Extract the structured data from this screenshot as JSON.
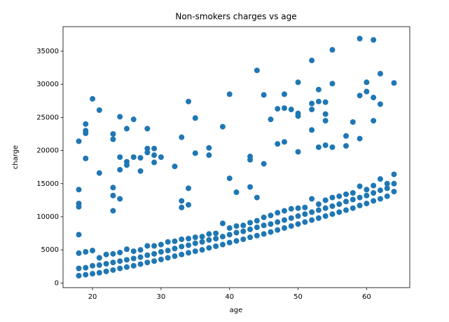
{
  "chart_data": {
    "type": "scatter",
    "title": "Non-smokers charges vs age",
    "x_label": "age",
    "y_label": "charge",
    "color": "#1f77b4",
    "xlim": [
      15.7,
      66.3
    ],
    "ylim": [
      -700,
      38700
    ],
    "xticks": [
      20,
      30,
      40,
      50,
      60
    ],
    "yticks": [
      0,
      5000,
      10000,
      15000,
      20000,
      25000,
      30000,
      35000
    ],
    "x": [
      18,
      18,
      18,
      19,
      19,
      19,
      20,
      20,
      20,
      21,
      21,
      21,
      22,
      22,
      22,
      23,
      23,
      23,
      24,
      24,
      24,
      25,
      25,
      25,
      26,
      26,
      26,
      27,
      27,
      27,
      28,
      28,
      28,
      29,
      29,
      29,
      30,
      30,
      30,
      31,
      31,
      31,
      32,
      32,
      32,
      33,
      33,
      33,
      34,
      34,
      34,
      35,
      35,
      35,
      36,
      36,
      36,
      37,
      37,
      37,
      38,
      38,
      38,
      39,
      39,
      39,
      40,
      40,
      40,
      41,
      41,
      41,
      42,
      42,
      42,
      43,
      43,
      43,
      44,
      44,
      44,
      45,
      45,
      45,
      46,
      46,
      46,
      47,
      47,
      47,
      48,
      48,
      48,
      49,
      49,
      49,
      50,
      50,
      50,
      51,
      51,
      51,
      52,
      52,
      52,
      53,
      53,
      53,
      54,
      54,
      54,
      55,
      55,
      55,
      56,
      56,
      56,
      57,
      57,
      57,
      58,
      58,
      58,
      59,
      59,
      59,
      60,
      60,
      60,
      61,
      61,
      61,
      62,
      62,
      62,
      63,
      63,
      63,
      64,
      64,
      64,
      18,
      18,
      18,
      18,
      18,
      19,
      19,
      19,
      19,
      20,
      21,
      21,
      23,
      23,
      23,
      23,
      23,
      24,
      24,
      24,
      24,
      25,
      25,
      25,
      26,
      26,
      27,
      27,
      28,
      28,
      28,
      29,
      29,
      29,
      30,
      32,
      33,
      33,
      33,
      34,
      34,
      34,
      35,
      35,
      37,
      37,
      39,
      40,
      40,
      41,
      43,
      43,
      43,
      44,
      44,
      45,
      45,
      46,
      47,
      47,
      48,
      48,
      48,
      49,
      50,
      50,
      50,
      50,
      52,
      52,
      52,
      52,
      53,
      53,
      53,
      54,
      54,
      54,
      54,
      55,
      55,
      55,
      57,
      57,
      58,
      59,
      59,
      59,
      60,
      60,
      61,
      61,
      61,
      62,
      62,
      64
    ],
    "values": [
      1100,
      2200,
      4500,
      1250,
      2300,
      4700,
      1400,
      2600,
      4900,
      1550,
      2700,
      3800,
      1750,
      2900,
      4300,
      1950,
      3100,
      4400,
      2200,
      3300,
      4600,
      2400,
      3500,
      5100,
      2600,
      3700,
      4800,
      2850,
      3900,
      5000,
      3100,
      4200,
      5600,
      3300,
      4400,
      5600,
      3550,
      4700,
      5800,
      3800,
      4900,
      6200,
      4050,
      5200,
      6300,
      4300,
      5500,
      6600,
      4550,
      5700,
      6700,
      4800,
      6000,
      6900,
      5000,
      6200,
      7000,
      5300,
      6500,
      7400,
      5550,
      6700,
      7500,
      5800,
      7000,
      9000,
      6100,
      7300,
      8300,
      6350,
      7600,
      8600,
      6600,
      7800,
      8700,
      6900,
      8100,
      9100,
      7150,
      8400,
      9400,
      7400,
      8700,
      9900,
      7700,
      8900,
      10200,
      8000,
      9200,
      10600,
      8300,
      9500,
      10900,
      8600,
      9800,
      11200,
      8900,
      10100,
      11300,
      9200,
      10400,
      11400,
      9500,
      10700,
      12700,
      9800,
      11000,
      11900,
      10100,
      11300,
      12500,
      10400,
      11600,
      12900,
      10700,
      11900,
      13100,
      11000,
      12300,
      13400,
      11300,
      12600,
      13600,
      11700,
      12900,
      14600,
      12000,
      13200,
      14100,
      12400,
      13600,
      14700,
      12700,
      14000,
      15700,
      13100,
      14300,
      15000,
      13800,
      15000,
      16400,
      21400,
      14100,
      12000,
      11500,
      7300,
      24000,
      23000,
      22600,
      18800,
      27800,
      26100,
      16600,
      22500,
      21700,
      14400,
      13200,
      10900,
      25100,
      19000,
      17100,
      12700,
      23300,
      18300,
      17800,
      24700,
      19000,
      18900,
      16900,
      23300,
      20300,
      19700,
      20300,
      19300,
      18200,
      19000,
      17600,
      22000,
      12400,
      11400,
      27400,
      14300,
      11800,
      24900,
      19600,
      20400,
      19300,
      23600,
      28500,
      15800,
      13700,
      19100,
      18600,
      14500,
      32100,
      12900,
      28400,
      18000,
      24700,
      26300,
      21000,
      28500,
      26400,
      21300,
      26200,
      30300,
      25600,
      25200,
      19800,
      33600,
      27100,
      26200,
      23100,
      29200,
      27400,
      20500,
      27300,
      25500,
      24500,
      20800,
      35200,
      30100,
      20500,
      22200,
      20700,
      24300,
      36900,
      28300,
      21800,
      30300,
      28900,
      36700,
      28000,
      24500,
      31600,
      27000,
      30200
    ]
  }
}
